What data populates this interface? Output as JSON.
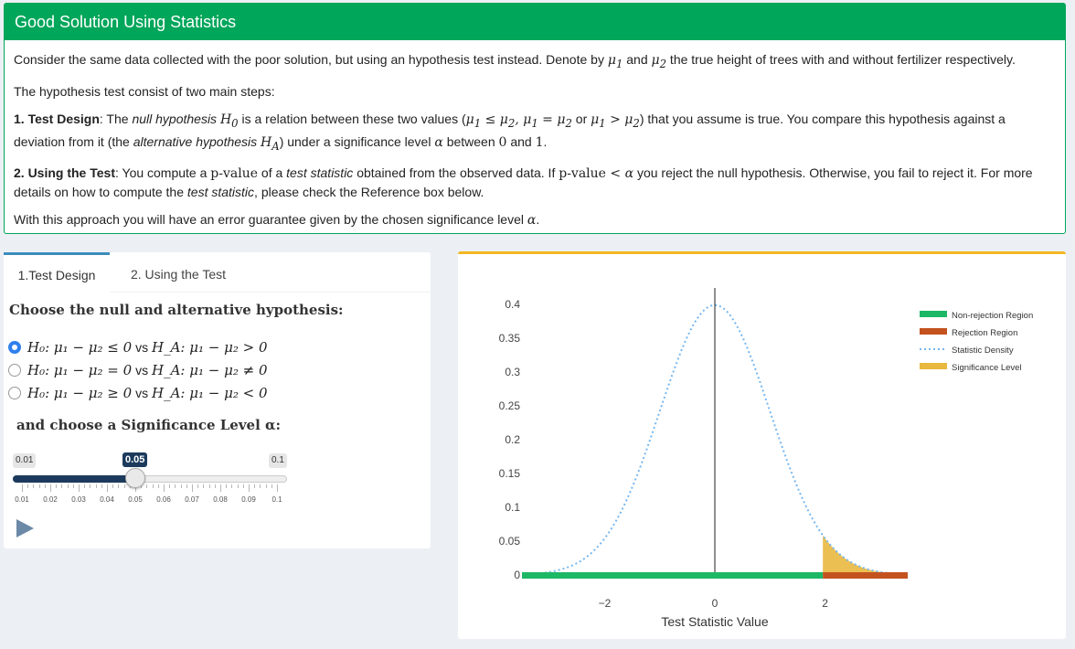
{
  "topbox": {
    "title": "Good Solution Using Statistics",
    "p1_a": "Consider the same data collected with the poor solution, but using an hypothesis test instead. Denote by ",
    "p1_mu1": "μ",
    "p1_and": " and ",
    "p1_b": " the true height of trees with and without fertilizer respectively.",
    "p2": "The hypothesis test consist of two main steps:",
    "p3_label": "1. Test Design",
    "p3_a": ": The ",
    "p3_null": "null hypothesis",
    "p3_b": " is a relation between these two values (",
    "p3_or": " or ",
    "p3_c": ") that you assume is true. You compare this hypothesis against a deviation from it (the ",
    "p3_alt": "alternative hypothesis",
    "p3_d": ") under a significance level ",
    "p3_e": " between ",
    "p3_f": " and ",
    "p3_g": ".",
    "p4_label": "2. Using the Test",
    "p4_a": ": You compute a ",
    "p4_pv": "p-value",
    "p4_b": " of a ",
    "p4_ts": "test statistic",
    "p4_c": " obtained from the observed data. If ",
    "p4_d": " you reject the null hypothesis. Otherwise, you fail to reject it. For more details on how to compute the ",
    "p4_ts2": "test statistic",
    "p4_e": ", please check the Reference box below.",
    "p5": "With this approach you will have an error guarantee given by the chosen significance level ",
    "p5_end": "."
  },
  "tabs": [
    {
      "label": "1.Test Design",
      "active": true
    },
    {
      "label": "2. Using the Test",
      "active": false
    }
  ],
  "hypothesis": {
    "heading": "Choose the null and alternative hypothesis:",
    "options": [
      {
        "null": "H₀: μ₁ − μ₂ ≤ 0",
        "vs": " vs ",
        "alt": "H_A: μ₁ − μ₂ > 0",
        "checked": true
      },
      {
        "null": "H₀: μ₁ − μ₂ = 0",
        "vs": " vs ",
        "alt": "H_A: μ₁ − μ₂ ≠ 0",
        "checked": false
      },
      {
        "null": "H₀: μ₁ − μ₂ ≥ 0",
        "vs": " vs ",
        "alt": "H_A: μ₁ − μ₂ < 0",
        "checked": false
      }
    ]
  },
  "significance": {
    "heading": "and choose a Significance Level α:",
    "min": "0.01",
    "max": "0.1",
    "value": "0.05",
    "value_num": 0.05,
    "ticks": [
      "0.01",
      "0.02",
      "0.03",
      "0.04",
      "0.05",
      "0.06",
      "0.07",
      "0.08",
      "0.09",
      "0.1"
    ]
  },
  "colors": {
    "header_green": "#00a65a",
    "tab_active": "#3c8dbc",
    "chart_border": "#f2b722",
    "non_rejection": "#1db866",
    "rejection": "#c4521f",
    "density": "#76b7f0",
    "significance": "#e9b83f"
  },
  "chart_data": {
    "type": "line",
    "xlabel": "Test Statistic Value",
    "ylabel": "",
    "xlim": [
      -3.5,
      3.5
    ],
    "ylim": [
      0,
      0.4
    ],
    "x_ticks": [
      "−2",
      "0",
      "2"
    ],
    "x_tick_values": [
      -2,
      0,
      2
    ],
    "y_ticks": [
      "0",
      "0.05",
      "0.1",
      "0.15",
      "0.2",
      "0.25",
      "0.3",
      "0.35",
      "0.4"
    ],
    "y_tick_values": [
      0,
      0.05,
      0.1,
      0.15,
      0.2,
      0.25,
      0.3,
      0.35,
      0.4
    ],
    "critical_value": 1.96,
    "vertical_line_x": 0,
    "density_series": "Statistic Density",
    "legend_position": "top-right",
    "legend": [
      {
        "name": "Non-rejection Region",
        "style": "bar",
        "color": "#1db866"
      },
      {
        "name": "Rejection Region",
        "style": "bar",
        "color": "#c4521f"
      },
      {
        "name": "Statistic Density",
        "style": "dotted",
        "color": "#76b7f0"
      },
      {
        "name": "Significance Level",
        "style": "bar",
        "color": "#e9b83f"
      }
    ],
    "regions": [
      {
        "name": "Non-rejection Region",
        "from": -3.5,
        "to": 1.96
      },
      {
        "name": "Rejection Region",
        "from": 1.96,
        "to": 3.5
      }
    ]
  }
}
